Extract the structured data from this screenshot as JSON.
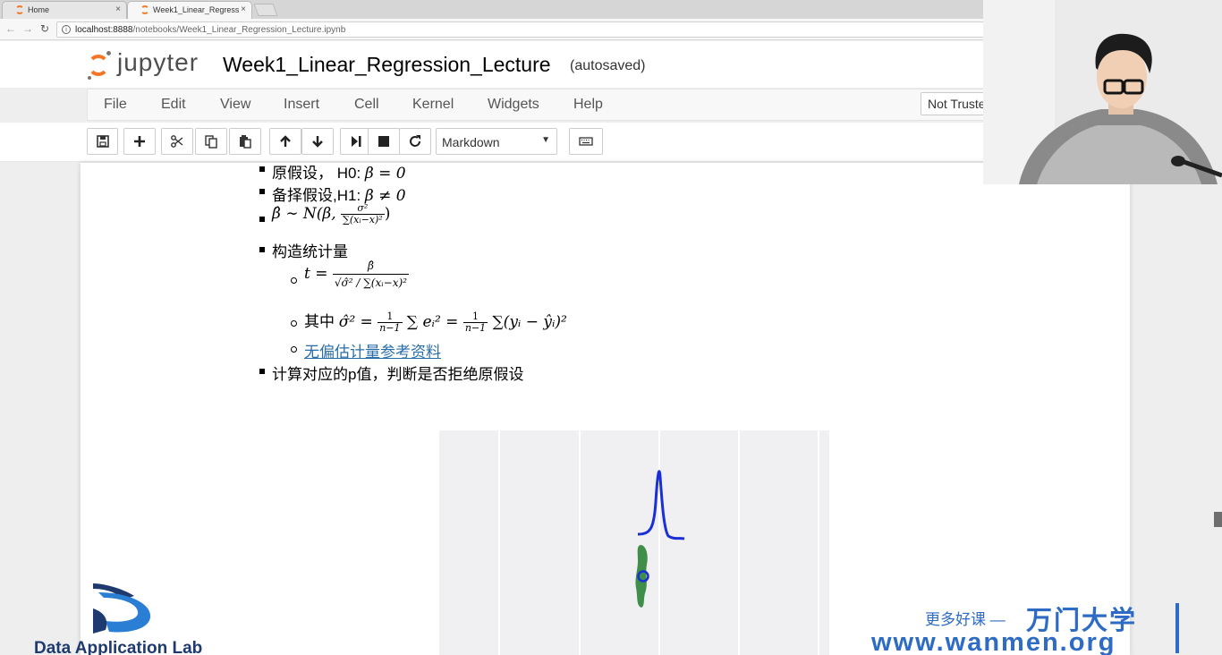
{
  "browser": {
    "tabs": [
      {
        "label": "Home",
        "close": "×"
      },
      {
        "label": "Week1_Linear_Regress",
        "close": "×"
      }
    ],
    "url_host": "localhost:8888",
    "url_path": "/notebooks/Week1_Linear_Regression_Lecture.ipynb"
  },
  "jupyter": {
    "logo_text": "jupyter",
    "notebook_title": "Week1_Linear_Regression_Lecture",
    "save_status": "(autosaved)",
    "trusted_label": "Not Truste"
  },
  "menubar": {
    "items": [
      "File",
      "Edit",
      "View",
      "Insert",
      "Cell",
      "Kernel",
      "Widgets",
      "Help"
    ]
  },
  "toolbar": {
    "buttons": [
      "save-icon",
      "plus-icon",
      "scissors-icon",
      "copy-icon",
      "paste-icon",
      "arrow-up-icon",
      "arrow-down-icon",
      "step-forward-icon",
      "stop-icon",
      "restart-icon",
      "keyboard-icon"
    ],
    "cell_type": "Markdown"
  },
  "content": {
    "b1_text": "原假设， H0: ",
    "b1_math": "β = 0",
    "b2_text": "备择假设,H1: ",
    "b2_math": "β ≠ 0",
    "b3_lhs": "β̂ ∼ N(β, ",
    "b3_num": "σ²",
    "b3_den": "∑(xᵢ−x)²",
    "b3_close": ")",
    "b4_text": "构造统计量",
    "s1_lhs": "t = ",
    "s1_num": "β̂",
    "s1_den": "√σ̂² / ∑(xᵢ−x)²",
    "s2_text": "其中 ",
    "s2_math_a": "σ̂² = ",
    "s2_frac_num": "1",
    "s2_frac_den": "n−1",
    "s2_math_b": " ∑ eᵢ² = ",
    "s2_frac2_num": "1",
    "s2_frac2_den": "n−1",
    "s2_math_c": " ∑(yᵢ − ŷᵢ)²",
    "s3_link": "无偏估计量参考资料",
    "b5_text": "计算对应的p值，判断是否拒绝原假设"
  },
  "watermarks": {
    "dal_text": "Data Application Lab",
    "wanmen_slogan": "更多好课 —",
    "wanmen_brand": "万门大学",
    "wanmen_url": "www.wanmen.org"
  },
  "colors": {
    "jupyter_orange": "#f37726",
    "link": "#296eaa",
    "curve_blue": "#1a2fd6",
    "points_green": "#3f8f4a",
    "brand_blue": "#2d6bc4"
  }
}
